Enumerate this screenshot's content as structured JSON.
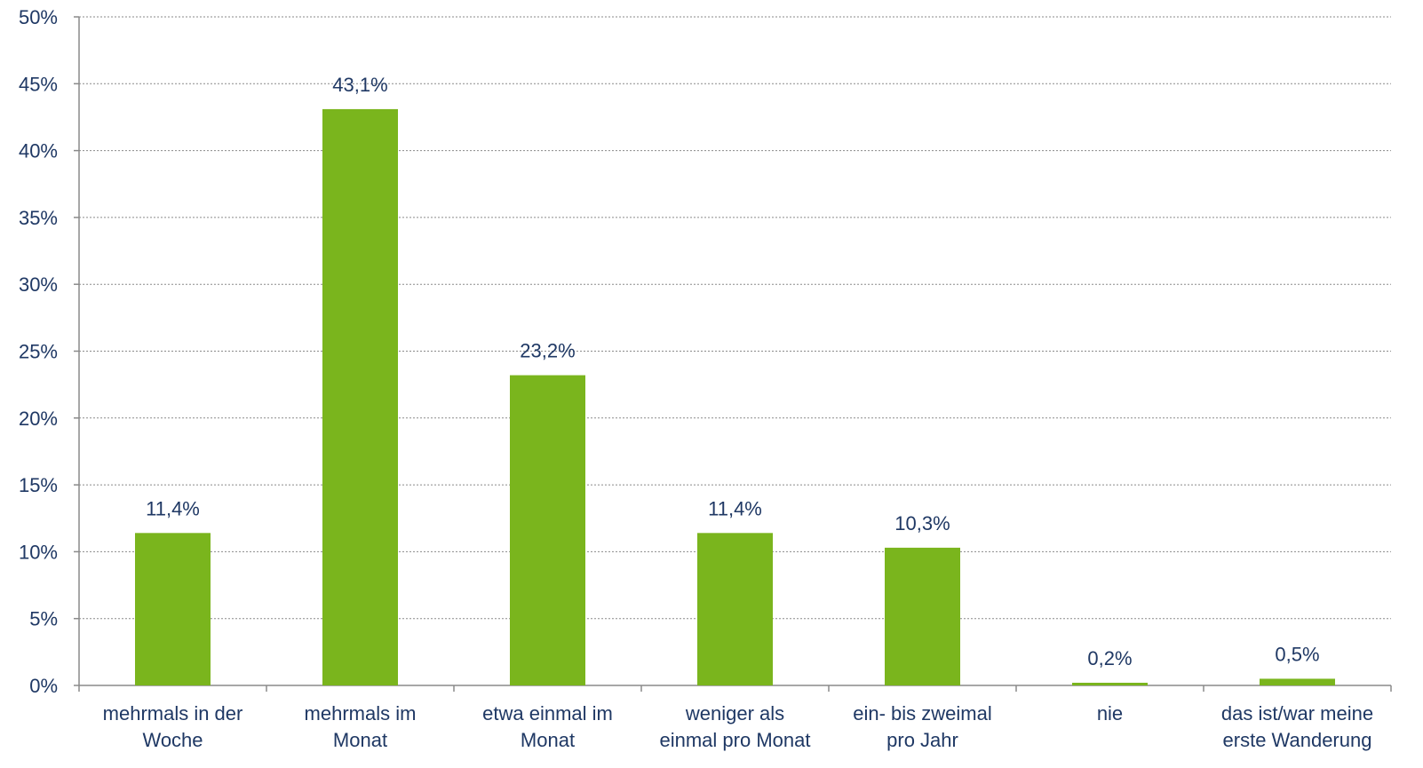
{
  "chart_data": {
    "type": "bar",
    "categories": [
      [
        "mehrmals in der",
        "Woche"
      ],
      [
        "mehrmals im",
        "Monat"
      ],
      [
        "etwa einmal im",
        "Monat"
      ],
      [
        "weniger als",
        "einmal pro Monat"
      ],
      [
        "ein- bis zweimal",
        "pro Jahr"
      ],
      [
        "nie"
      ],
      [
        "das ist/war meine",
        "erste Wanderung"
      ]
    ],
    "values": [
      11.4,
      43.1,
      23.2,
      11.4,
      10.3,
      0.2,
      0.5
    ],
    "data_labels": [
      "11,4%",
      "43,1%",
      "23,2%",
      "11,4%",
      "10,3%",
      "0,2%",
      "0,5%"
    ],
    "yticks": [
      "0%",
      "5%",
      "10%",
      "15%",
      "20%",
      "25%",
      "30%",
      "35%",
      "40%",
      "45%",
      "50%"
    ],
    "ylim": [
      0,
      50
    ],
    "grid": true,
    "bar_color": "#7ab51d",
    "text_color": "#1f3864",
    "title": "",
    "xlabel": "",
    "ylabel": ""
  }
}
